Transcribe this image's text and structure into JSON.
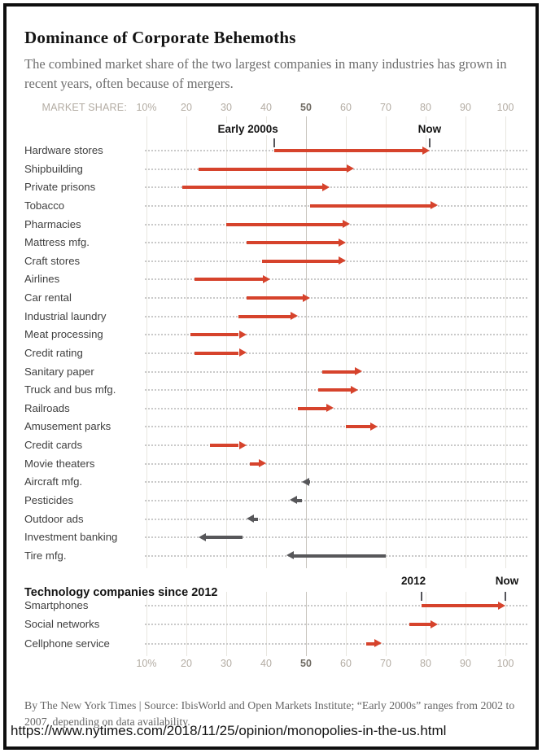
{
  "title": "Dominance of Corporate Behemoths",
  "subtitle": "The combined market share of the two largest companies in many industries has grown in recent years, often because of mergers.",
  "axis": {
    "prefix_label": "MARKET SHARE:",
    "tick_labels": [
      "10%",
      "20",
      "30",
      "40",
      "50",
      "60",
      "70",
      "80",
      "90",
      "100"
    ],
    "tick_values": [
      10,
      20,
      30,
      40,
      50,
      60,
      70,
      80,
      90,
      100
    ],
    "emphasized_value": 50,
    "xlim": [
      10,
      100
    ]
  },
  "annotations": {
    "industries": {
      "start_label": "Early 2000s",
      "start_value": 42,
      "end_label": "Now",
      "end_value": 81
    },
    "technology": {
      "start_label": "2012",
      "start_value": 79,
      "end_label": "Now",
      "end_value": 100
    }
  },
  "tech_section_title": "Technology companies since 2012",
  "colors": {
    "increase_arrow": "#d6432c",
    "decrease_arrow": "#57575a"
  },
  "footer": {
    "text": "By The New York Times | Source: IbisWorld and Open Markets Institute; “Early 2000s” ranges from 2002 to 2007, depending on data availability."
  },
  "url": "https://www.nytimes.com/2018/11/25/opinion/monopolies-in-the-us.html",
  "chart_data": {
    "type": "bar",
    "subtype": "arrow-range (dumbbell with arrowheads)",
    "title": "Dominance of Corporate Behemoths",
    "xlabel": "MARKET SHARE (%)",
    "xlim": [
      10,
      100
    ],
    "grid": "vertical gridlines at each 10, dotted row leaders",
    "legend_position": "none",
    "groups": [
      {
        "name": "industries",
        "period": "Early 2000s → Now",
        "rows": [
          {
            "label": "Hardware stores",
            "start": 42,
            "end": 81,
            "trend": "increase"
          },
          {
            "label": "Shipbuilding",
            "start": 23,
            "end": 62,
            "trend": "increase"
          },
          {
            "label": "Private prisons",
            "start": 19,
            "end": 56,
            "trend": "increase"
          },
          {
            "label": "Tobacco",
            "start": 51,
            "end": 83,
            "trend": "increase"
          },
          {
            "label": "Pharmacies",
            "start": 30,
            "end": 61,
            "trend": "increase"
          },
          {
            "label": "Mattress mfg.",
            "start": 35,
            "end": 60,
            "trend": "increase"
          },
          {
            "label": "Craft stores",
            "start": 39,
            "end": 60,
            "trend": "increase"
          },
          {
            "label": "Airlines",
            "start": 22,
            "end": 41,
            "trend": "increase"
          },
          {
            "label": "Car rental",
            "start": 35,
            "end": 51,
            "trend": "increase"
          },
          {
            "label": "Industrial laundry",
            "start": 33,
            "end": 48,
            "trend": "increase"
          },
          {
            "label": "Meat processing",
            "start": 21,
            "end": 35,
            "trend": "increase"
          },
          {
            "label": "Credit rating",
            "start": 22,
            "end": 35,
            "trend": "increase"
          },
          {
            "label": "Sanitary paper",
            "start": 54,
            "end": 64,
            "trend": "increase"
          },
          {
            "label": "Truck and bus mfg.",
            "start": 53,
            "end": 63,
            "trend": "increase"
          },
          {
            "label": "Railroads",
            "start": 48,
            "end": 57,
            "trend": "increase"
          },
          {
            "label": "Amusement parks",
            "start": 60,
            "end": 68,
            "trend": "increase"
          },
          {
            "label": "Credit cards",
            "start": 26,
            "end": 35,
            "trend": "increase"
          },
          {
            "label": "Movie theaters",
            "start": 36,
            "end": 40,
            "trend": "increase"
          },
          {
            "label": "Aircraft mfg.",
            "start": 51,
            "end": 49,
            "trend": "decrease"
          },
          {
            "label": "Pesticides",
            "start": 49,
            "end": 46,
            "trend": "decrease"
          },
          {
            "label": "Outdoor ads",
            "start": 38,
            "end": 35,
            "trend": "decrease"
          },
          {
            "label": "Investment banking",
            "start": 34,
            "end": 23,
            "trend": "decrease"
          },
          {
            "label": "Tire mfg.",
            "start": 70,
            "end": 45,
            "trend": "decrease"
          }
        ]
      },
      {
        "name": "technology",
        "period": "2012 → Now",
        "rows": [
          {
            "label": "Smartphones",
            "start": 79,
            "end": 100,
            "trend": "increase"
          },
          {
            "label": "Social networks",
            "start": 76,
            "end": 83,
            "trend": "increase"
          },
          {
            "label": "Cellphone service",
            "start": 65,
            "end": 69,
            "trend": "increase"
          }
        ]
      }
    ]
  }
}
